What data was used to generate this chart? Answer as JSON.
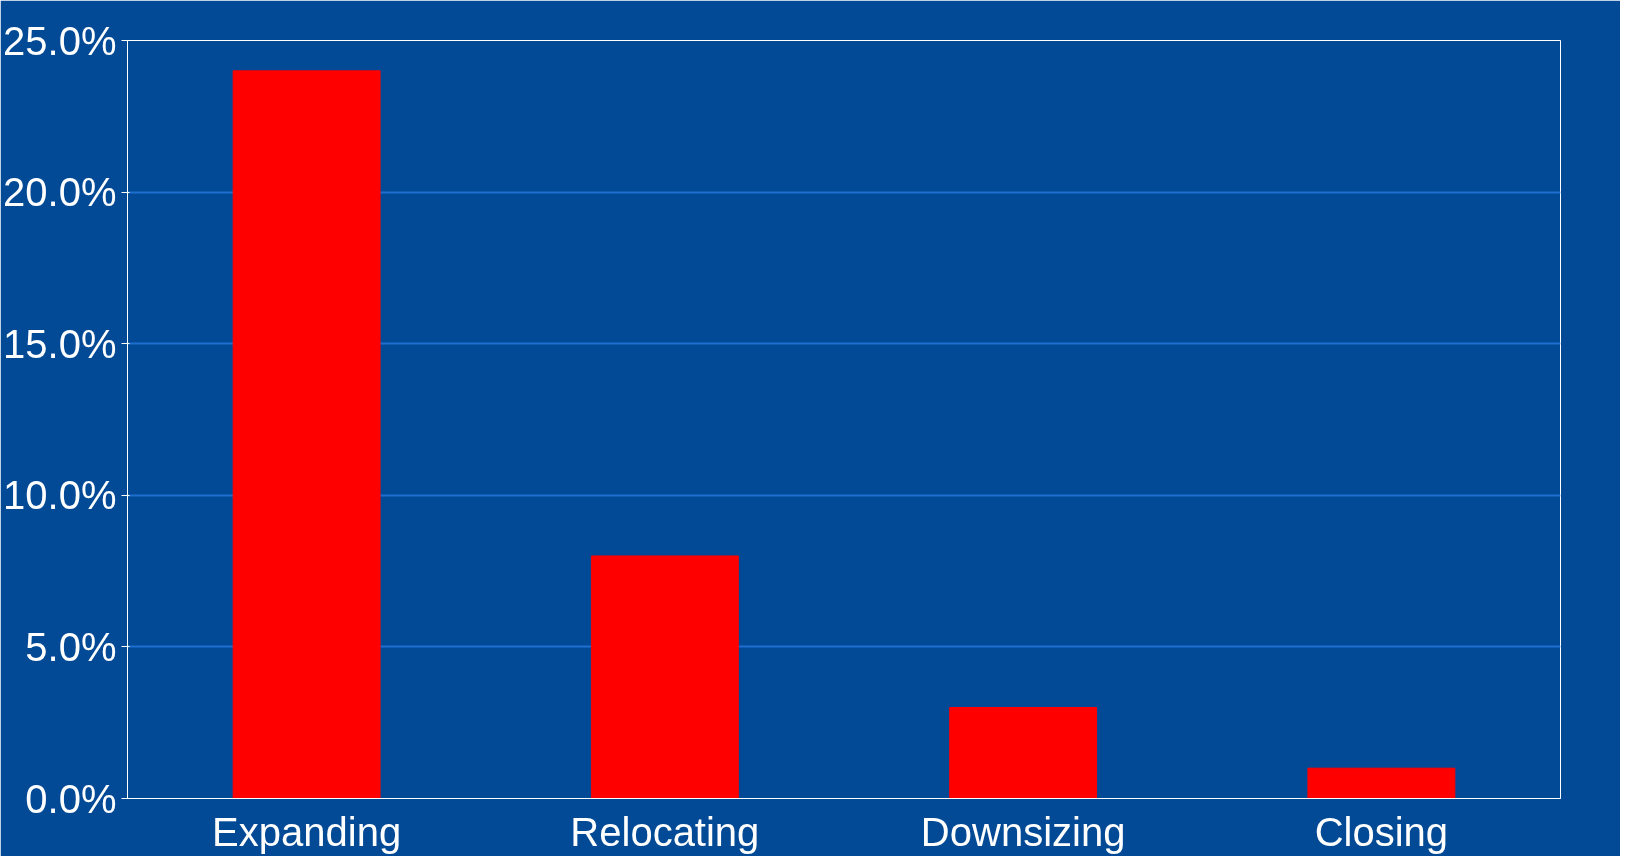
{
  "chart_data": {
    "type": "bar",
    "categories": [
      "Expanding",
      "Relocating",
      "Downsizing",
      "Closing"
    ],
    "values": [
      24.0,
      8.0,
      3.0,
      1.0
    ],
    "color": "#ff0000",
    "ylim": [
      0,
      25
    ],
    "yticks": [
      {
        "value": 0,
        "label": "0.0%"
      },
      {
        "value": 5,
        "label": "5.0%"
      },
      {
        "value": 10,
        "label": "10.0%"
      },
      {
        "value": 15,
        "label": "15.0%"
      },
      {
        "value": 20,
        "label": "20.0%"
      },
      {
        "value": 25,
        "label": "25.0%"
      }
    ],
    "grid": "y"
  }
}
